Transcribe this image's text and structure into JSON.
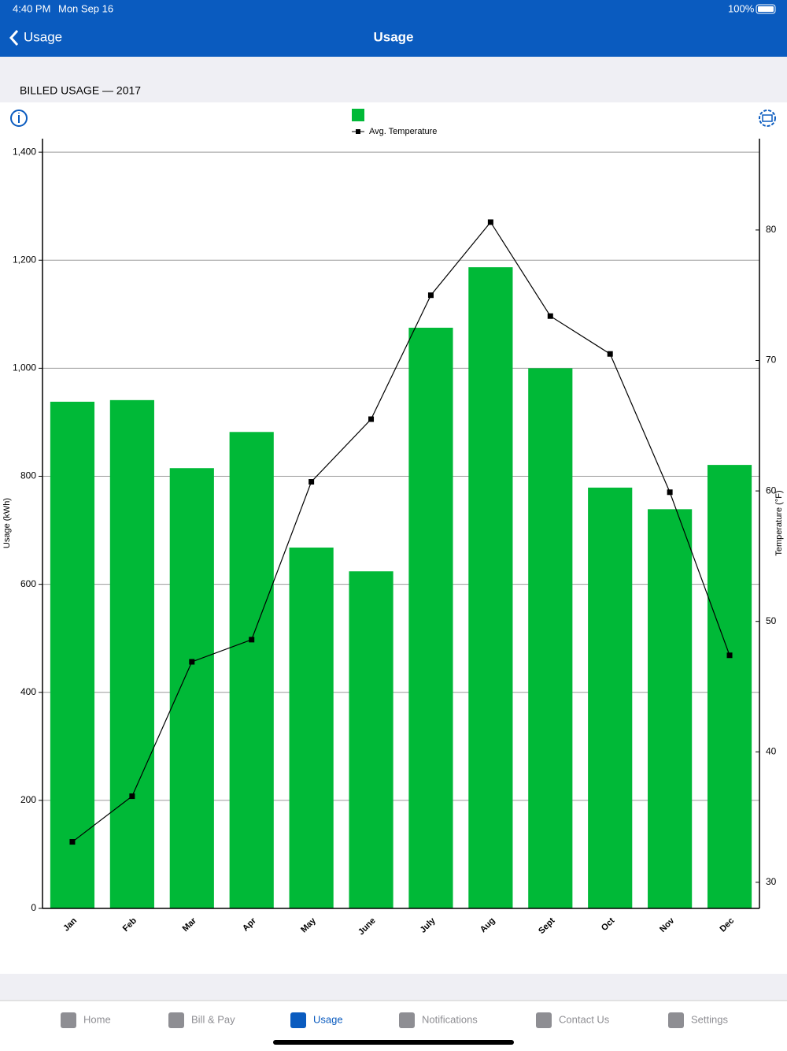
{
  "status_bar": {
    "time": "4:40 PM",
    "date": "Mon Sep 16",
    "battery": "100%"
  },
  "nav": {
    "back": "Usage",
    "title": "Usage"
  },
  "section_title": "BILLED USAGE — 2017",
  "chart_data": {
    "type": "bar",
    "categories": [
      "Jan",
      "Feb",
      "Mar",
      "Apr",
      "May",
      "June",
      "July",
      "Aug",
      "Sept",
      "Oct",
      "Nov",
      "Dec"
    ],
    "series": [
      {
        "color": "#00b937",
        "values": [
          938,
          941,
          815,
          882,
          668,
          624,
          1075,
          1187,
          1000,
          779,
          739,
          821
        ]
      },
      {
        "name": "Avg. Temperature",
        "type": "line",
        "axis": "y2",
        "color": "#000000",
        "values": [
          33.1,
          36.6,
          46.9,
          48.6,
          60.7,
          65.5,
          75.0,
          80.6,
          73.4,
          70.5,
          59.9,
          47.4
        ]
      }
    ],
    "ylabel": "Usage (kWh)",
    "y2label": "Temperature (°F)",
    "ylim": [
      0,
      1425
    ],
    "yticks": [
      0,
      200,
      400,
      600,
      800,
      {
        "value": 1000,
        "label": "1,000"
      },
      {
        "value": 1200,
        "label": "1,200"
      },
      {
        "value": 1400,
        "label": "1,400"
      }
    ],
    "y2lim": [
      28,
      87
    ],
    "y2ticks": [
      30,
      40,
      50,
      60,
      70,
      80
    ],
    "grid": true
  },
  "tabs": [
    "Home",
    "Bill & Pay",
    "Usage",
    "Notifications",
    "Contact Us",
    "Settings"
  ],
  "active_tab": 2
}
